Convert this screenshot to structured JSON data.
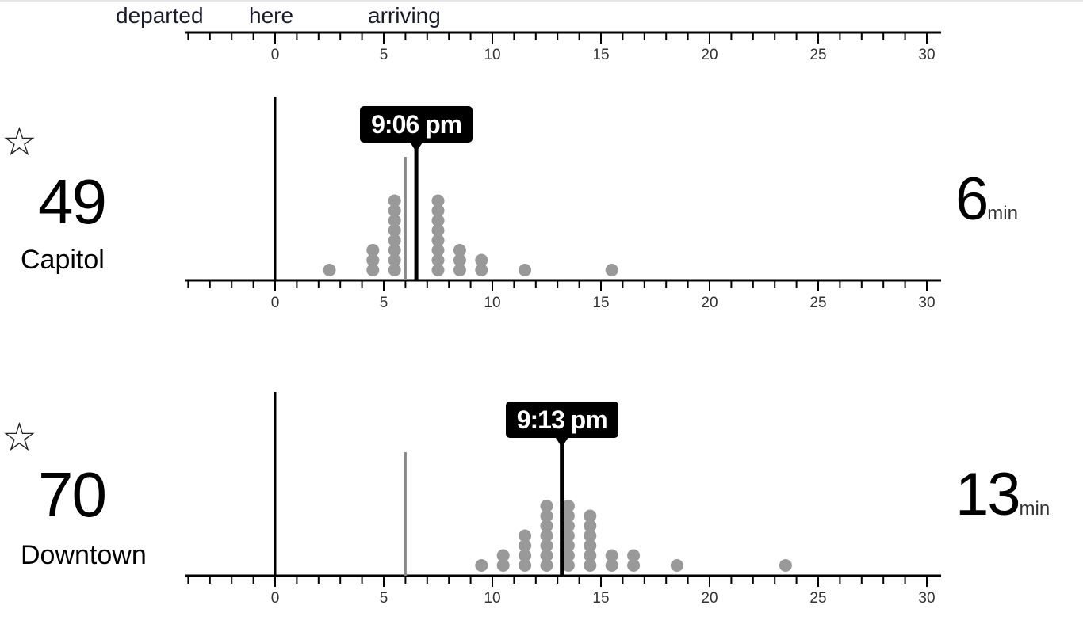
{
  "header": {
    "departed_label": "departed",
    "here_label": "here",
    "arriving_label": "arriving"
  },
  "axis": {
    "tick_labels": [
      "0",
      "5",
      "10",
      "15",
      "20",
      "25",
      "30"
    ],
    "min": -4,
    "max": 30
  },
  "routes": [
    {
      "route_number": "49",
      "destination": "Capitol",
      "eta_value": "6",
      "eta_unit": "min",
      "predicted_time": "9:06 pm",
      "prediction_minutes": 6.5,
      "secondary_line_minutes": 6.0,
      "distribution": [
        {
          "minute": 2.5,
          "count": 1
        },
        {
          "minute": 4.5,
          "count": 3
        },
        {
          "minute": 5.5,
          "count": 8
        },
        {
          "minute": 7.5,
          "count": 8
        },
        {
          "minute": 8.5,
          "count": 3
        },
        {
          "minute": 9.5,
          "count": 2
        },
        {
          "minute": 11.5,
          "count": 1
        },
        {
          "minute": 15.5,
          "count": 1
        }
      ]
    },
    {
      "route_number": "70",
      "destination": "Downtown",
      "eta_value": "13",
      "eta_unit": "min",
      "predicted_time": "9:13 pm",
      "prediction_minutes": 13.2,
      "secondary_line_minutes": 6.0,
      "distribution": [
        {
          "minute": 9.5,
          "count": 1
        },
        {
          "minute": 10.5,
          "count": 2
        },
        {
          "minute": 11.5,
          "count": 4
        },
        {
          "minute": 12.5,
          "count": 7
        },
        {
          "minute": 13.5,
          "count": 7
        },
        {
          "minute": 14.5,
          "count": 6
        },
        {
          "minute": 15.5,
          "count": 2
        },
        {
          "minute": 16.5,
          "count": 2
        },
        {
          "minute": 18.5,
          "count": 1
        },
        {
          "minute": 23.5,
          "count": 1
        }
      ]
    }
  ],
  "colors": {
    "dot": "#999999",
    "axis": "#000000",
    "label_bg": "#000000",
    "label_text": "#ffffff",
    "secondary_line": "#888888"
  },
  "icons": {
    "favorite": "star-outline-icon"
  }
}
